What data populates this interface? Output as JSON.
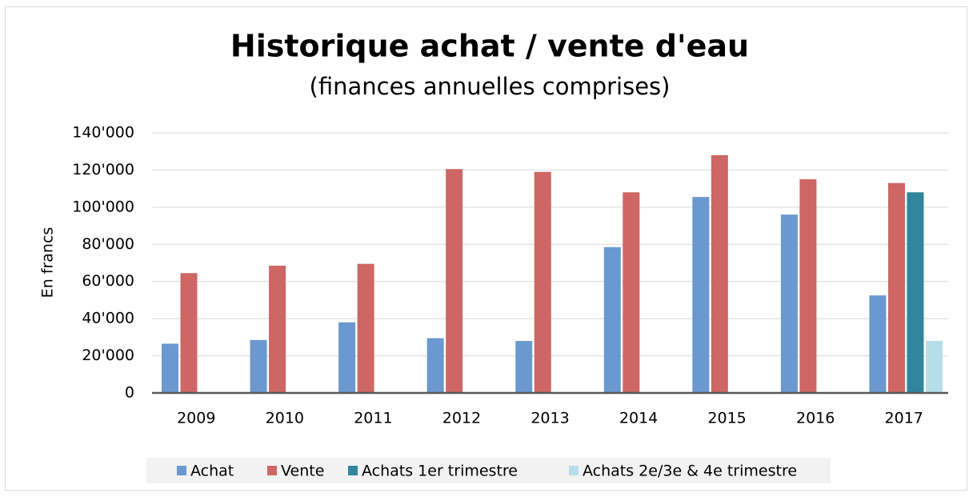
{
  "chart_data": {
    "type": "bar",
    "title": "Historique achat / vente d'eau",
    "subtitle": "(finances annuelles comprises)",
    "y_label": "En francs",
    "categories": [
      "2009",
      "2010",
      "2011",
      "2012",
      "2013",
      "2014",
      "2015",
      "2016",
      "2017"
    ],
    "series": [
      {
        "name": "Achat",
        "color": "#6a98cf",
        "values": [
          26500,
          28500,
          38000,
          29500,
          28000,
          78500,
          105500,
          96000,
          52500
        ]
      },
      {
        "name": "Vente",
        "color": "#cd6664",
        "values": [
          64500,
          68500,
          69500,
          120500,
          119000,
          108000,
          128000,
          115000,
          113000
        ]
      },
      {
        "name": "Achats 1er trimestre",
        "color": "#31859c",
        "values": [
          null,
          null,
          null,
          null,
          null,
          null,
          null,
          null,
          108000
        ]
      },
      {
        "name": "Achats 2e/3e & 4e trimestre",
        "color": "#b7dee8",
        "values": [
          null,
          null,
          null,
          null,
          null,
          null,
          null,
          null,
          28000
        ]
      }
    ],
    "ylim": [
      0,
      140000
    ],
    "yticks": [
      0,
      {
        "value": 20000,
        "label": "20'000"
      },
      {
        "value": 40000,
        "label": "40'000"
      },
      {
        "value": 60000,
        "label": "60'000"
      },
      {
        "value": 80000,
        "label": "80'000"
      },
      {
        "value": 100000,
        "label": "100'000"
      },
      {
        "value": 120000,
        "label": "120'000"
      },
      {
        "value": 140000,
        "label": "140'000"
      }
    ],
    "grid": true,
    "legend": "bottom"
  }
}
